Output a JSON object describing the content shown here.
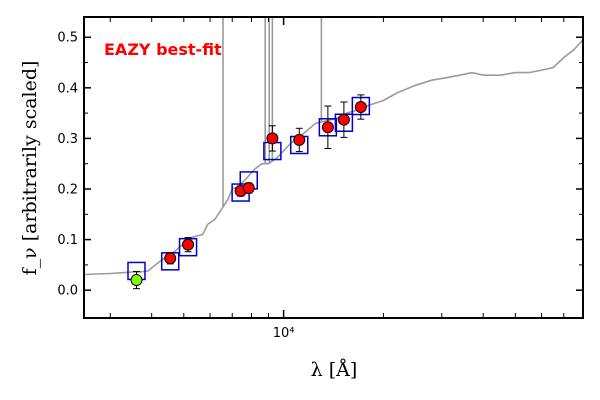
{
  "chart_data": {
    "type": "scatter",
    "title": "",
    "annotation": {
      "text": "EAZY best-fit",
      "color": "#ff0000"
    },
    "xlabel": "λ [Å]",
    "ylabel": "f_ν [arbitrarily scaled]",
    "x_scale": "log",
    "xlim": [
      2500,
      80000
    ],
    "ylim": [
      -0.055,
      0.54
    ],
    "x_ticks": [
      {
        "value": 10000,
        "label": "10⁴"
      }
    ],
    "y_ticks": [
      {
        "value": 0.0,
        "label": "0.0"
      },
      {
        "value": 0.1,
        "label": "0.1"
      },
      {
        "value": 0.2,
        "label": "0.2"
      },
      {
        "value": 0.3,
        "label": "0.3"
      },
      {
        "value": 0.4,
        "label": "0.4"
      },
      {
        "value": 0.5,
        "label": "0.5"
      }
    ],
    "grid": false,
    "colors": {
      "spectrum": "#9b9b9b",
      "model_box": "#0000cc",
      "observed": "#ff0000",
      "observed_special": "#7fff00",
      "errorbar": "#000000"
    },
    "template_spectrum": {
      "x": [
        2500,
        3000,
        3500,
        3700,
        3900,
        4050,
        4300,
        4700,
        5000,
        5300,
        5700,
        5800,
        5900,
        6200,
        6500,
        6800,
        7000,
        7300,
        7700,
        8200,
        8600,
        9000,
        9500,
        10500,
        11500,
        12500,
        13500,
        14500,
        15500,
        16500,
        18000,
        20000,
        22000,
        25000,
        28000,
        31000,
        34000,
        37000,
        40000,
        45000,
        50000,
        55000,
        60000,
        65000,
        70000,
        75000,
        80000
      ],
      "y": [
        0.031,
        0.033,
        0.036,
        0.036,
        0.038,
        0.047,
        0.06,
        0.077,
        0.092,
        0.105,
        0.11,
        0.12,
        0.13,
        0.14,
        0.16,
        0.18,
        0.2,
        0.205,
        0.22,
        0.24,
        0.25,
        0.25,
        0.26,
        0.29,
        0.31,
        0.33,
        0.335,
        0.34,
        0.35,
        0.355,
        0.365,
        0.375,
        0.39,
        0.405,
        0.415,
        0.42,
        0.425,
        0.43,
        0.425,
        0.425,
        0.43,
        0.43,
        0.435,
        0.44,
        0.46,
        0.475,
        0.495
      ]
    },
    "emission_lines": [
      {
        "x": 6563,
        "y_top": 0.54
      },
      {
        "x": 8800,
        "y_top": 0.54
      },
      {
        "x": 9050,
        "y_top": 0.54
      },
      {
        "x": 9250,
        "y_top": 0.54
      },
      {
        "x": 13000,
        "y_top": 0.54
      }
    ],
    "model_photometry": {
      "x": [
        3600,
        4550,
        5150,
        7420,
        7850,
        9250,
        11150,
        13600,
        15200,
        17100
      ],
      "y": [
        0.038,
        0.057,
        0.085,
        0.193,
        0.217,
        0.275,
        0.287,
        0.322,
        0.331,
        0.364
      ]
    },
    "observed_photometry": {
      "x": [
        3600,
        4550,
        5150,
        7420,
        7850,
        9250,
        11150,
        13600,
        15200,
        17100
      ],
      "y": [
        0.02,
        0.063,
        0.09,
        0.196,
        0.202,
        0.3,
        0.297,
        0.322,
        0.337,
        0.362
      ],
      "err": [
        0.017,
        0.011,
        0.014,
        0.01,
        0.01,
        0.025,
        0.023,
        0.042,
        0.035,
        0.024
      ],
      "special_index": 0
    }
  }
}
